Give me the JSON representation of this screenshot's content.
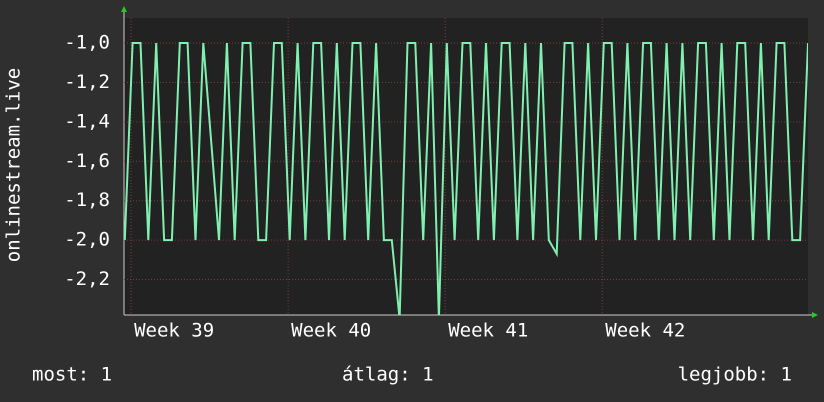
{
  "chart_data": {
    "type": "line",
    "y_label": "onlinestream.live",
    "x": [
      38.96,
      39.01,
      39.06,
      39.11,
      39.16,
      39.21,
      39.26,
      39.31,
      39.36,
      39.41,
      39.46,
      39.51,
      39.56,
      39.61,
      39.66,
      39.71,
      39.76,
      39.81,
      39.86,
      39.91,
      39.96,
      40.01,
      40.06,
      40.11,
      40.16,
      40.21,
      40.26,
      40.31,
      40.36,
      40.41,
      40.46,
      40.51,
      40.56,
      40.61,
      40.66,
      40.71,
      40.76,
      40.81,
      40.86,
      40.91,
      40.96,
      41.01,
      41.06,
      41.11,
      41.16,
      41.21,
      41.26,
      41.31,
      41.36,
      41.41,
      41.46,
      41.51,
      41.56,
      41.61,
      41.66,
      41.71,
      41.76,
      41.81,
      41.86,
      41.91,
      41.96,
      42.01,
      42.06,
      42.11,
      42.16,
      42.21,
      42.26,
      42.31,
      42.36,
      42.41,
      42.46,
      42.51,
      42.56,
      42.61,
      42.66,
      42.71,
      42.76,
      42.81,
      42.86,
      42.91,
      42.96,
      43.01,
      43.06,
      43.11,
      43.16,
      43.21,
      43.26,
      43.31
    ],
    "series": [
      {
        "color": "#80f0b0",
        "values": [
          -2,
          -1,
          -1,
          -2,
          -1,
          -2,
          -2,
          -1,
          -1,
          -2,
          -1,
          -1.5,
          -2,
          -1,
          -2,
          -1,
          -1,
          -2,
          -2,
          -1,
          -1,
          -2,
          -1,
          -2,
          -1,
          -1,
          -2,
          -1,
          -2,
          -1,
          -1,
          -2,
          -1,
          -2,
          -2,
          -2.4,
          -1,
          -1,
          -2,
          -1,
          -2.4,
          -1,
          -2,
          -1,
          -1,
          -2,
          -1,
          -2,
          -1,
          -1,
          -2,
          -1,
          -2,
          -1,
          -2,
          -2.07,
          -1,
          -1,
          -2,
          -1,
          -2,
          -1,
          -1,
          -2,
          -1,
          -2,
          -1,
          -1,
          -2,
          -1,
          -2,
          -1,
          -2,
          -1,
          -1,
          -2,
          -1,
          -2,
          -1,
          -1,
          -2,
          -1,
          -2,
          -1,
          -1,
          -2,
          -2,
          -1
        ]
      }
    ],
    "xlim": [
      38.955,
      43.31
    ],
    "xticks": [
      {
        "value": 39,
        "label": "Week 39"
      },
      {
        "value": 40,
        "label": "Week 40"
      },
      {
        "value": 41,
        "label": "Week 41"
      },
      {
        "value": 42,
        "label": "Week 42"
      }
    ],
    "ylim": [
      -2.38,
      -0.873
    ],
    "yticks": [
      {
        "value": -1.0,
        "label": "-1,0"
      },
      {
        "value": -1.2,
        "label": "-1,2"
      },
      {
        "value": -1.4,
        "label": "-1,4"
      },
      {
        "value": -1.6,
        "label": "-1,6"
      },
      {
        "value": -1.8,
        "label": "-1,8"
      },
      {
        "value": -2.0,
        "label": "-2,0"
      },
      {
        "value": -2.2,
        "label": "-2,2"
      }
    ],
    "grid": true,
    "footer": [
      "most: 1",
      "átlag: 1",
      "legjobb: 1"
    ]
  }
}
